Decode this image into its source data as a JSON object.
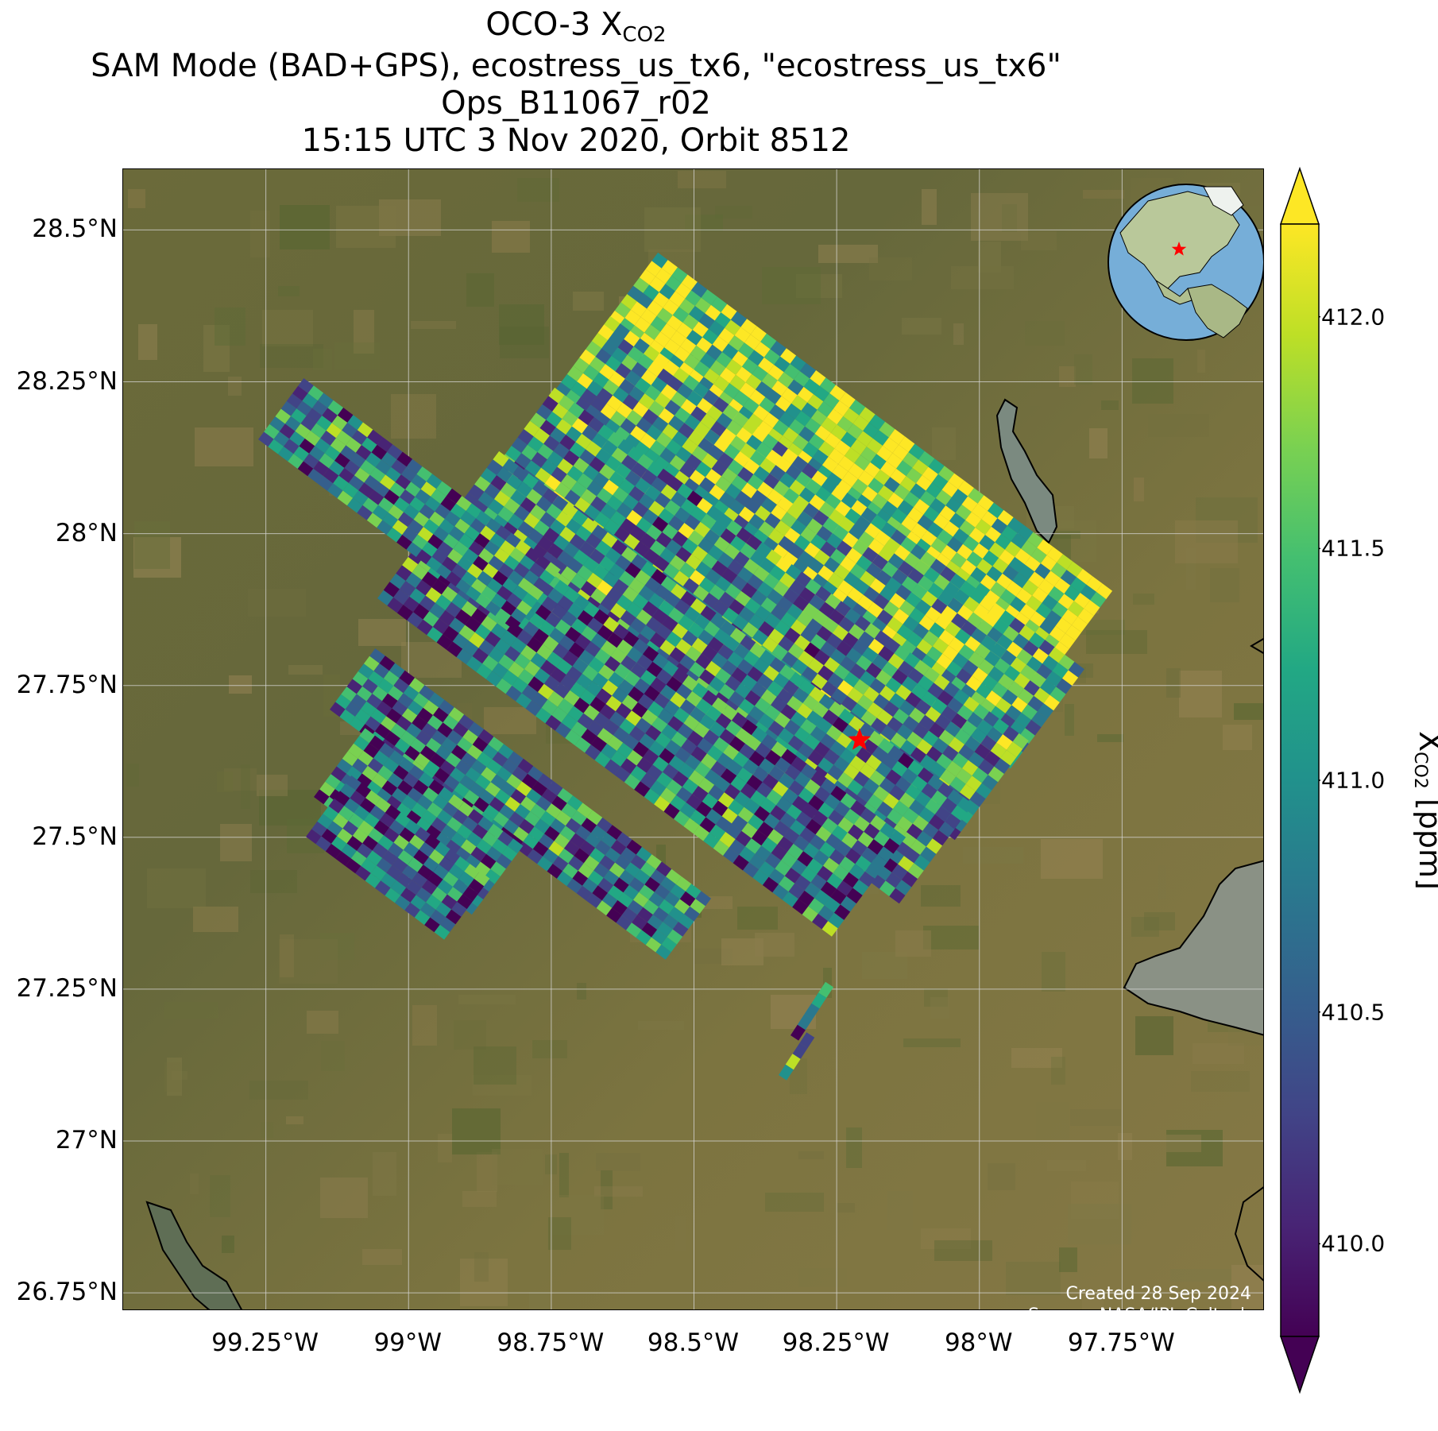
{
  "title": {
    "line1_prefix": "OCO-3 X",
    "line1_sub": "CO2",
    "line2": "SAM Mode (BAD+GPS), ecostress_us_tx6, \"ecostress_us_tx6\"",
    "line3": "Ops_B11067_r02",
    "line4": "15:15 UTC 3 Nov 2020, Orbit 8512"
  },
  "map": {
    "lat_ticks": [
      {
        "value": 28.5,
        "label": "28.5°N"
      },
      {
        "value": 28.25,
        "label": "28.25°N"
      },
      {
        "value": 28.0,
        "label": "28°N"
      },
      {
        "value": 27.75,
        "label": "27.75°N"
      },
      {
        "value": 27.5,
        "label": "27.5°N"
      },
      {
        "value": 27.25,
        "label": "27.25°N"
      },
      {
        "value": 27.0,
        "label": "27°N"
      },
      {
        "value": 26.75,
        "label": "26.75°N"
      }
    ],
    "lon_ticks": [
      {
        "value": -99.25,
        "label": "99.25°W"
      },
      {
        "value": -99.0,
        "label": "99°W"
      },
      {
        "value": -98.75,
        "label": "98.75°W"
      },
      {
        "value": -98.5,
        "label": "98.5°W"
      },
      {
        "value": -98.25,
        "label": "98.25°W"
      },
      {
        "value": -98.0,
        "label": "98°W"
      },
      {
        "value": -97.75,
        "label": "97.75°W"
      }
    ],
    "extent": {
      "lon_min": -99.5,
      "lon_max": -97.5,
      "lat_min": 26.72,
      "lat_max": 28.6
    },
    "target": {
      "lon": -98.21,
      "lat": 27.66,
      "marker": "red-star-icon",
      "color": "#ff0000"
    },
    "basemap": "satellite-imagery",
    "inset_globe": {
      "description_icon": "globe-icon",
      "marker": "red-star-icon"
    },
    "credit_line1": "Created 28 Sep 2024",
    "credit_line2": "Source: NASA/JPL-Caltech"
  },
  "colorbar": {
    "label_prefix": "X",
    "label_sub": "CO2",
    "label_suffix": " [ppm]",
    "cmap": "viridis",
    "vmin": 409.8,
    "vmax": 412.2,
    "extend": "both",
    "ticks": [
      {
        "value": 410.0,
        "label": "410.0"
      },
      {
        "value": 410.5,
        "label": "410.5"
      },
      {
        "value": 411.0,
        "label": "411.0"
      },
      {
        "value": 411.5,
        "label": "411.5"
      },
      {
        "value": 412.0,
        "label": "412.0"
      }
    ]
  }
}
